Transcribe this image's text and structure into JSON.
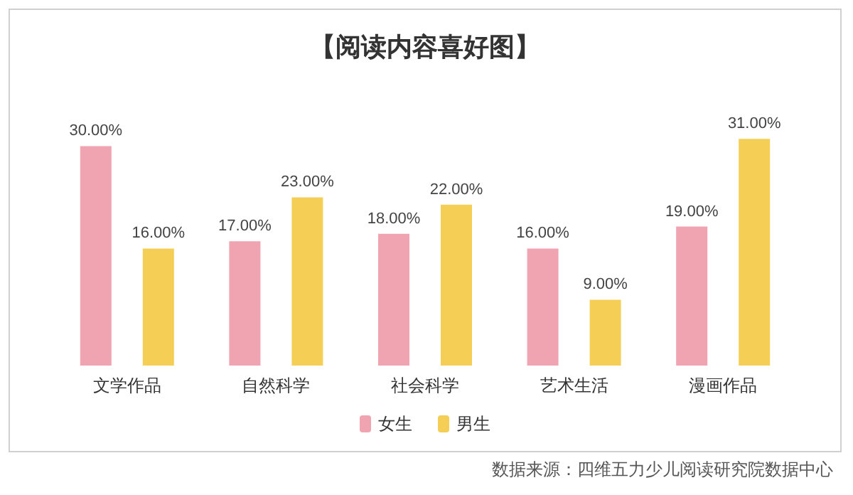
{
  "chart_data": {
    "type": "bar",
    "title": "【阅读内容喜好图】",
    "categories": [
      "文学作品",
      "自然科学",
      "社会科学",
      "艺术生活",
      "漫画作品"
    ],
    "series": [
      {
        "name": "女生",
        "color": "#f0a3b0",
        "values": [
          30,
          17,
          18,
          16,
          19
        ],
        "value_labels": [
          "30.00%",
          "17.00%",
          "18.00%",
          "16.00%",
          "19.00%"
        ]
      },
      {
        "name": "男生",
        "color": "#f5cf55",
        "values": [
          16,
          23,
          22,
          9,
          31
        ],
        "value_labels": [
          "16.00%",
          "23.00%",
          "22.00%",
          "9.00%",
          "31.00%"
        ]
      }
    ],
    "legend": "bottom",
    "tick_labels": "x",
    "annotations": [
      "数据来源：四维五力少儿阅读研究院数据中心"
    ]
  }
}
